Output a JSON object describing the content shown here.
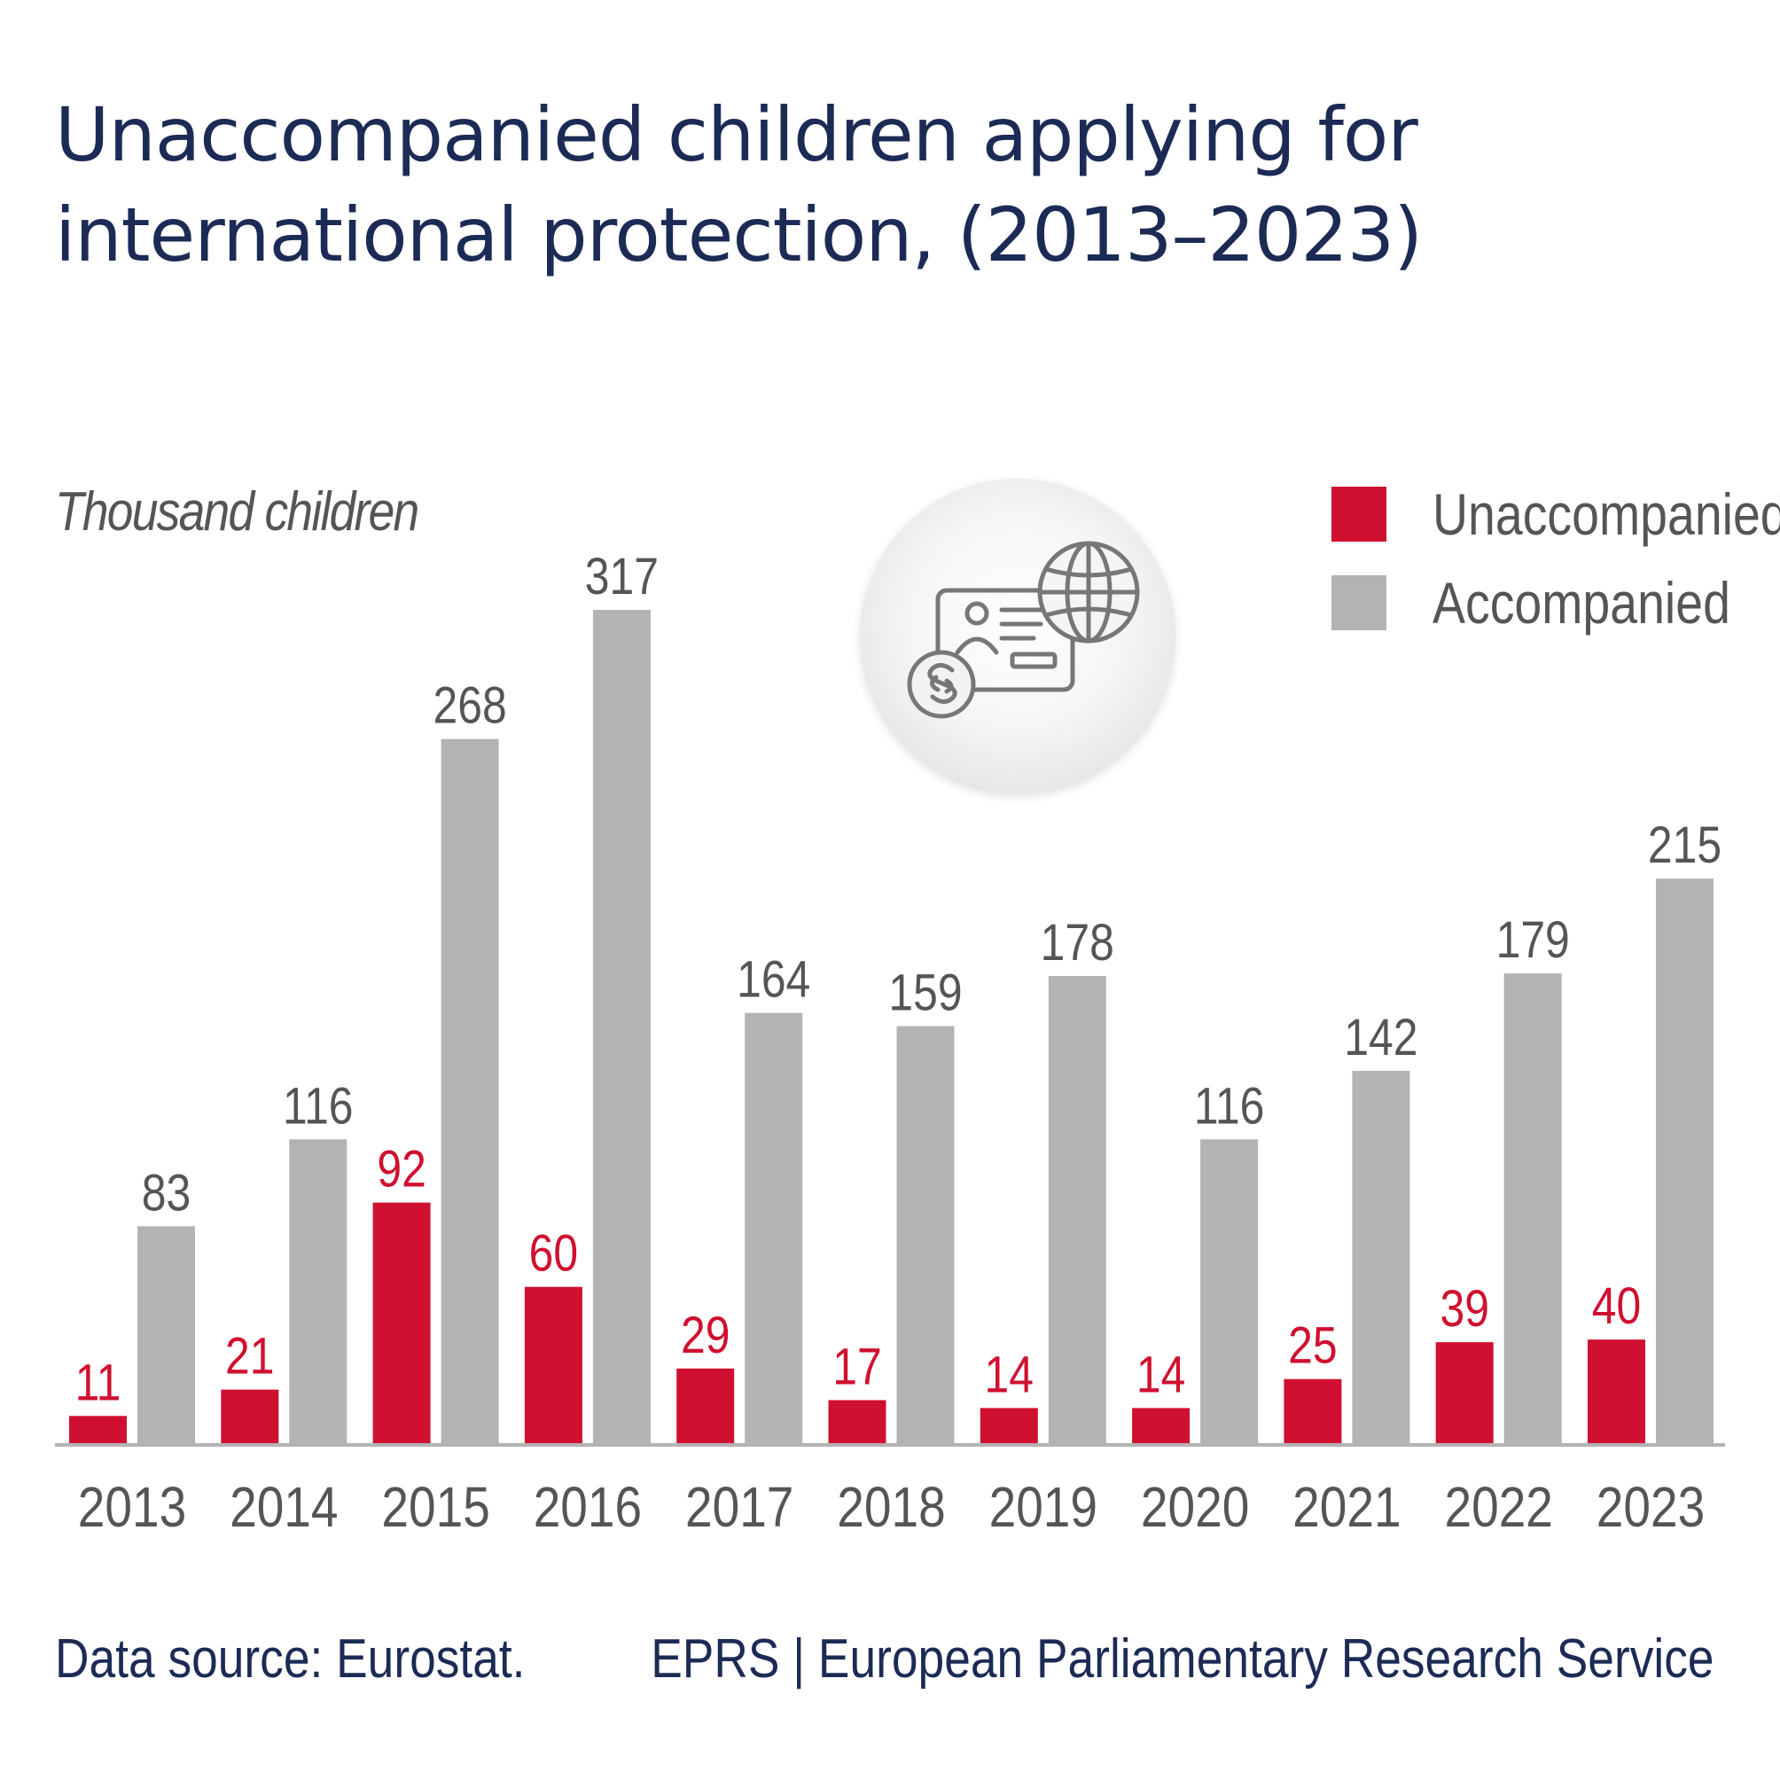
{
  "title_lines": [
    "Unaccompanied children applying for",
    "international protection, (2013–2023)"
  ],
  "unit_label": "Thousand children",
  "legend": [
    {
      "label": "Unaccompanied",
      "color": "#d01030"
    },
    {
      "label": "Accompanied",
      "color": "#b3b3b3"
    }
  ],
  "emblem_icon": "id-card-globe-paragraph-icon",
  "footer": {
    "source": "Data source: Eurostat.",
    "credit": "EPRS | European Parliamentary Research Service"
  },
  "chart_data": {
    "type": "bar",
    "title": "Unaccompanied children applying for international protection, (2013–2023)",
    "ylabel": "Thousand children",
    "xlabel": "",
    "categories": [
      "2013",
      "2014",
      "2015",
      "2016",
      "2017",
      "2018",
      "2019",
      "2020",
      "2021",
      "2022",
      "2023"
    ],
    "series": [
      {
        "name": "Unaccompanied",
        "color": "#d01030",
        "label_color": "#d01030",
        "values": [
          11,
          21,
          92,
          60,
          29,
          17,
          14,
          14,
          25,
          39,
          40
        ]
      },
      {
        "name": "Accompanied",
        "color": "#b3b3b3",
        "label_color": "#555555",
        "values": [
          83,
          116,
          268,
          317,
          164,
          159,
          178,
          116,
          142,
          179,
          215
        ]
      }
    ],
    "ylim": [
      0,
      317
    ],
    "grid": false,
    "legend_position": "top-right",
    "data_labels": true
  }
}
